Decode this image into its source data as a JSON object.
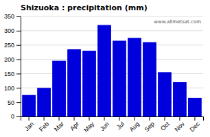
{
  "chart_data": {
    "type": "bar",
    "title": "Shizuoka : precipitation (mm)",
    "categories": [
      "Jan",
      "Feb",
      "Mar",
      "Apr",
      "May",
      "Jun",
      "Jul",
      "Aug",
      "Sep",
      "Oct",
      "Nov",
      "Dec"
    ],
    "values": [
      75,
      100,
      195,
      235,
      230,
      320,
      265,
      275,
      260,
      155,
      120,
      65
    ],
    "color": "#0000dd",
    "ylim": [
      0,
      350
    ],
    "yticks": [
      0,
      50,
      100,
      150,
      200,
      250,
      300,
      350
    ],
    "grid": true,
    "annotations": [
      "www.allmetsat.com"
    ]
  }
}
